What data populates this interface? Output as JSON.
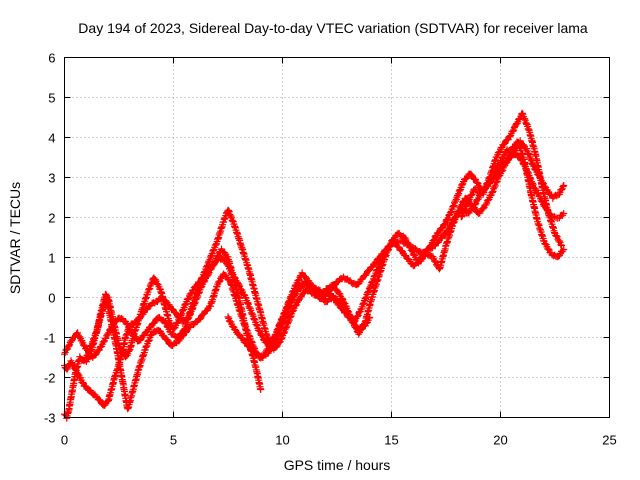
{
  "chart_data": {
    "type": "scatter",
    "title": "Day 194 of 2023, Sidereal Day-to-day VTEC variation (SDTVAR) for receiver lama",
    "xlabel": "GPS time / hours",
    "ylabel": "SDTVAR / TECUs",
    "xlim": [
      0,
      25
    ],
    "ylim": [
      -3,
      6
    ],
    "x_ticks": [
      0,
      5,
      10,
      15,
      20,
      25
    ],
    "y_ticks": [
      -3,
      -2,
      -1,
      0,
      1,
      2,
      3,
      4,
      5,
      6
    ],
    "grid": true,
    "marker": "plus",
    "series": [
      {
        "name": "series-1",
        "color": "#ff0000",
        "x": [
          0.0,
          0.1,
          0.2,
          0.3,
          0.5,
          0.7,
          0.9,
          1.1,
          1.3,
          1.5,
          1.8,
          2.0,
          2.3,
          2.6,
          2.8,
          3.0,
          3.3,
          3.6,
          3.9,
          4.2,
          4.5,
          4.8,
          5.1,
          5.4,
          5.7,
          6.0,
          6.3,
          6.6,
          6.9,
          7.2,
          7.5,
          7.7,
          8.0,
          8.3,
          8.6,
          8.9,
          9.2,
          9.5,
          9.8,
          10.1,
          10.4,
          10.7,
          11.0,
          11.3,
          11.6,
          11.9,
          12.2,
          12.5,
          12.8,
          13.1,
          13.4,
          13.7,
          14.0,
          14.3,
          14.6,
          14.9,
          15.2,
          15.5,
          15.8,
          16.1,
          16.4,
          16.7,
          17.0,
          17.3,
          17.6,
          17.9,
          18.2,
          18.5,
          18.8,
          19.1,
          19.4,
          19.7,
          20.0,
          20.3,
          20.6,
          20.9,
          21.2,
          21.5,
          21.8,
          22.1,
          22.4,
          22.7,
          22.9
        ],
        "y": [
          -1.7,
          -1.8,
          -1.7,
          -1.6,
          -1.8,
          -2.0,
          -2.2,
          -2.3,
          -2.4,
          -2.5,
          -2.7,
          -2.6,
          -2.0,
          -1.5,
          -1.0,
          -0.7,
          -0.6,
          -0.4,
          -0.2,
          -0.1,
          0.0,
          -0.2,
          -0.4,
          -0.6,
          -0.5,
          -0.1,
          0.3,
          0.6,
          0.9,
          1.2,
          1.0,
          0.6,
          0.3,
          0.0,
          -0.4,
          -0.8,
          -1.1,
          -1.2,
          -0.8,
          -0.4,
          0.0,
          0.2,
          0.3,
          0.3,
          0.2,
          0.1,
          0.2,
          0.4,
          0.5,
          0.4,
          0.3,
          0.5,
          0.7,
          0.9,
          1.1,
          1.3,
          1.4,
          1.4,
          1.3,
          1.2,
          1.1,
          1.2,
          1.3,
          1.5,
          1.7,
          2.0,
          2.2,
          2.1,
          2.3,
          2.6,
          2.8,
          3.0,
          3.3,
          3.4,
          3.6,
          3.5,
          3.2,
          2.8,
          2.5,
          2.2,
          2.0,
          2.0,
          2.1
        ]
      },
      {
        "name": "series-2",
        "color": "#ff0000",
        "x": [
          0.0,
          0.2,
          0.4,
          0.6,
          0.8,
          1.0,
          1.3,
          1.6,
          1.9,
          2.2,
          2.5,
          2.8,
          3.1,
          3.4,
          3.7,
          4.0,
          4.3,
          4.6,
          4.9,
          5.2,
          5.5,
          5.8,
          6.1,
          6.4,
          6.7,
          7.0,
          7.3,
          7.5,
          7.8,
          8.1,
          8.4,
          8.7,
          9.0,
          9.3,
          9.6,
          9.9,
          10.2,
          10.5,
          10.8,
          11.1,
          11.4,
          11.7,
          12.0,
          12.3,
          12.6,
          12.9,
          13.2,
          13.5,
          13.8,
          14.1,
          14.4,
          14.7,
          15.0,
          15.3,
          15.6,
          15.9,
          16.2,
          16.5,
          16.8,
          17.1,
          17.4,
          17.7,
          18.0,
          18.3,
          18.6,
          18.9,
          19.2,
          19.5,
          19.8,
          20.1,
          20.4,
          20.7,
          21.0,
          21.3,
          21.6,
          21.9,
          22.2,
          22.5,
          22.8
        ],
        "y": [
          -1.4,
          -1.2,
          -1.0,
          -0.9,
          -1.1,
          -1.3,
          -1.5,
          -1.3,
          -1.0,
          -0.7,
          -0.5,
          -0.6,
          -0.9,
          -1.1,
          -0.9,
          -0.7,
          -0.5,
          -0.6,
          -0.9,
          -1.0,
          -0.8,
          -0.3,
          0.2,
          0.6,
          1.0,
          1.4,
          1.9,
          2.2,
          1.8,
          1.3,
          0.8,
          0.2,
          -0.4,
          -1.0,
          -1.3,
          -1.1,
          -0.7,
          -0.3,
          0.0,
          0.2,
          0.1,
          0.0,
          0.2,
          0.3,
          0.1,
          -0.2,
          -0.6,
          -0.9,
          -0.6,
          0.0,
          0.5,
          1.0,
          1.4,
          1.6,
          1.5,
          1.2,
          0.9,
          1.1,
          1.3,
          1.6,
          1.8,
          2.1,
          2.5,
          2.9,
          3.1,
          2.9,
          2.6,
          3.0,
          3.5,
          3.8,
          4.0,
          4.3,
          4.6,
          4.2,
          3.6,
          2.8,
          2.1,
          1.6,
          1.3
        ]
      },
      {
        "name": "series-3",
        "color": "#ff0000",
        "x": [
          0.0,
          0.1,
          0.2,
          0.3,
          0.5,
          0.7,
          0.9,
          1.1,
          1.3,
          1.5,
          1.7,
          1.9,
          2.1,
          2.4,
          2.7,
          2.9,
          3.1,
          3.4,
          3.7,
          4.0,
          4.3,
          4.6,
          4.9,
          5.2,
          5.5,
          5.8,
          6.1,
          6.4,
          6.7,
          7.0,
          7.3,
          7.6,
          7.9,
          8.2,
          8.5,
          8.8,
          9.1,
          9.4,
          9.7,
          10.0,
          10.3,
          10.6,
          10.9,
          11.2,
          11.5,
          11.8,
          12.1,
          12.4,
          12.7,
          13.0,
          13.3,
          13.6,
          13.9,
          14.2,
          14.5,
          14.8,
          15.1,
          15.4,
          15.7,
          16.0,
          16.3,
          16.6,
          16.9,
          17.2,
          17.5,
          17.8,
          18.1,
          18.4,
          18.7,
          19.0,
          19.3,
          19.6,
          19.9,
          20.2,
          20.5,
          20.8,
          21.1,
          21.4,
          21.7,
          22.0,
          22.3,
          22.6,
          22.9
        ],
        "y": [
          -2.9,
          -3.0,
          -2.8,
          -2.5,
          -1.9,
          -1.5,
          -1.6,
          -1.4,
          -1.1,
          -0.8,
          -0.3,
          0.1,
          -0.5,
          -1.3,
          -2.2,
          -2.8,
          -2.4,
          -1.8,
          -1.3,
          -0.9,
          -0.8,
          -1.0,
          -1.2,
          -1.1,
          -0.9,
          -0.7,
          -0.6,
          -0.4,
          -0.2,
          0.3,
          0.6,
          0.4,
          -0.1,
          -0.6,
          -1.0,
          -1.4,
          -1.5,
          -1.2,
          -0.9,
          -0.5,
          -0.1,
          0.3,
          0.6,
          0.4,
          0.2,
          0.0,
          0.1,
          0.0,
          -0.2,
          -0.4,
          -0.6,
          -0.3,
          0.1,
          0.5,
          0.9,
          1.2,
          1.4,
          1.2,
          1.0,
          0.8,
          0.9,
          1.1,
          1.0,
          0.7,
          1.3,
          1.8,
          2.2,
          2.5,
          2.3,
          2.1,
          2.3,
          2.6,
          3.0,
          3.3,
          3.7,
          3.9,
          3.4,
          2.6,
          1.9,
          1.4,
          1.1,
          1.0,
          1.2
        ]
      },
      {
        "name": "series-4",
        "color": "#ff0000",
        "x": [
          1.0,
          1.2,
          1.4,
          1.6,
          1.8,
          2.0,
          2.2,
          2.5,
          2.8,
          3.0,
          3.2,
          3.5,
          3.8,
          4.1,
          4.4,
          4.6,
          4.8,
          5.0,
          5.3,
          5.6,
          5.9,
          6.2,
          6.5,
          6.8,
          7.1,
          7.4,
          7.6,
          7.8,
          8.0,
          8.2,
          8.4,
          8.6,
          8.8,
          9.0
        ],
        "y": [
          -1.6,
          -1.4,
          -1.0,
          -0.6,
          -0.2,
          0.0,
          -0.5,
          -1.2,
          -1.5,
          -1.3,
          -0.9,
          -0.4,
          0.1,
          0.5,
          0.2,
          -0.2,
          -0.6,
          -0.8,
          -0.5,
          -0.1,
          0.2,
          0.4,
          0.6,
          0.8,
          1.0,
          0.9,
          0.7,
          0.4,
          0.0,
          -0.5,
          -1.0,
          -1.4,
          -1.8,
          -2.3
        ]
      },
      {
        "name": "series-5",
        "color": "#ff0000",
        "x": [
          7.5,
          7.8,
          8.1,
          8.4,
          8.7,
          9.0,
          9.3,
          9.6,
          9.9,
          10.2,
          10.5,
          10.8,
          11.1,
          11.4,
          11.7,
          12.0,
          12.3,
          12.6,
          12.9,
          13.2,
          13.5,
          13.8,
          14.0
        ],
        "y": [
          -0.5,
          -0.8,
          -1.0,
          -1.2,
          -1.4,
          -1.5,
          -1.4,
          -1.2,
          -0.8,
          -0.4,
          0.0,
          0.3,
          0.4,
          0.2,
          0.0,
          -0.1,
          0.0,
          -0.2,
          -0.4,
          -0.6,
          -0.8,
          -0.7,
          -0.5
        ]
      },
      {
        "name": "series-6",
        "color": "#ff0000",
        "x": [
          18.2,
          18.5,
          18.8,
          19.1,
          19.4,
          19.7,
          20.0,
          20.3,
          20.6,
          20.9,
          21.2,
          21.5,
          21.8,
          22.1,
          22.4,
          22.7,
          22.9
        ],
        "y": [
          2.0,
          2.4,
          2.7,
          2.6,
          2.8,
          3.1,
          3.4,
          3.7,
          3.6,
          3.9,
          3.7,
          3.3,
          3.0,
          2.7,
          2.5,
          2.6,
          2.8
        ]
      }
    ]
  }
}
